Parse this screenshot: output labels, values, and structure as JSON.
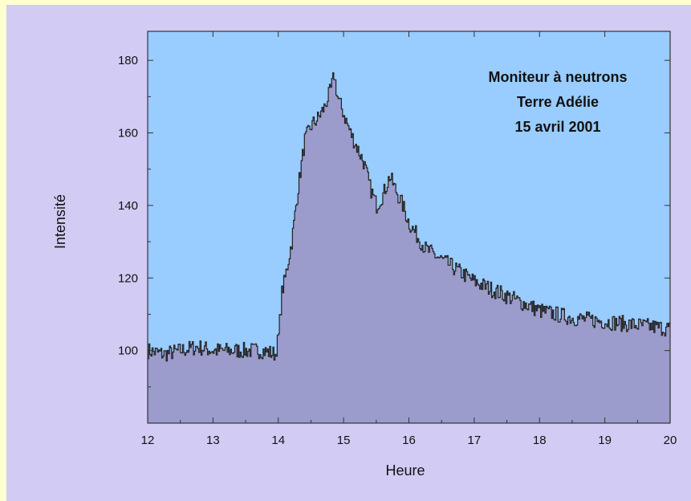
{
  "chart_data": {
    "type": "area",
    "title": "",
    "annotation": [
      "Moniteur à neutrons",
      "Terre Adélie",
      "15 avril 2001"
    ],
    "xlabel": "Heure",
    "ylabel": "Intensité",
    "xlim": [
      12,
      20
    ],
    "ylim": [
      80,
      188
    ],
    "xticks": [
      12,
      13,
      14,
      15,
      16,
      17,
      18,
      19,
      20
    ],
    "yticks": [
      100,
      120,
      140,
      160,
      180
    ],
    "grid": false,
    "legend": "none",
    "colors": {
      "plot_background": "#99ccff",
      "area_fill": "#9b9bcc",
      "line": "#222222",
      "frame_background": "#d2ccf4",
      "border": "#ffffd0"
    },
    "series": [
      {
        "x": [
          12.0,
          12.25,
          12.5,
          12.75,
          13.0,
          13.25,
          13.5,
          13.75,
          13.95,
          14.0,
          14.05,
          14.1,
          14.2,
          14.3,
          14.4,
          14.5,
          14.6,
          14.7,
          14.8,
          14.85,
          14.9,
          15.0,
          15.1,
          15.2,
          15.3,
          15.4,
          15.5,
          15.6,
          15.7,
          15.8,
          15.9,
          16.0,
          16.25,
          16.5,
          16.75,
          17.0,
          17.5,
          18.0,
          18.5,
          19.0,
          19.5,
          20.0
        ],
        "values": [
          100,
          99,
          100,
          101,
          100,
          100,
          100,
          100,
          99,
          104,
          116,
          120,
          130,
          145,
          158,
          162,
          164,
          167,
          172,
          176,
          170,
          165,
          160,
          156,
          152,
          145,
          140,
          143,
          148,
          144,
          140,
          135,
          128,
          125,
          122,
          119,
          115,
          111,
          109,
          108,
          107,
          106
        ]
      }
    ]
  }
}
